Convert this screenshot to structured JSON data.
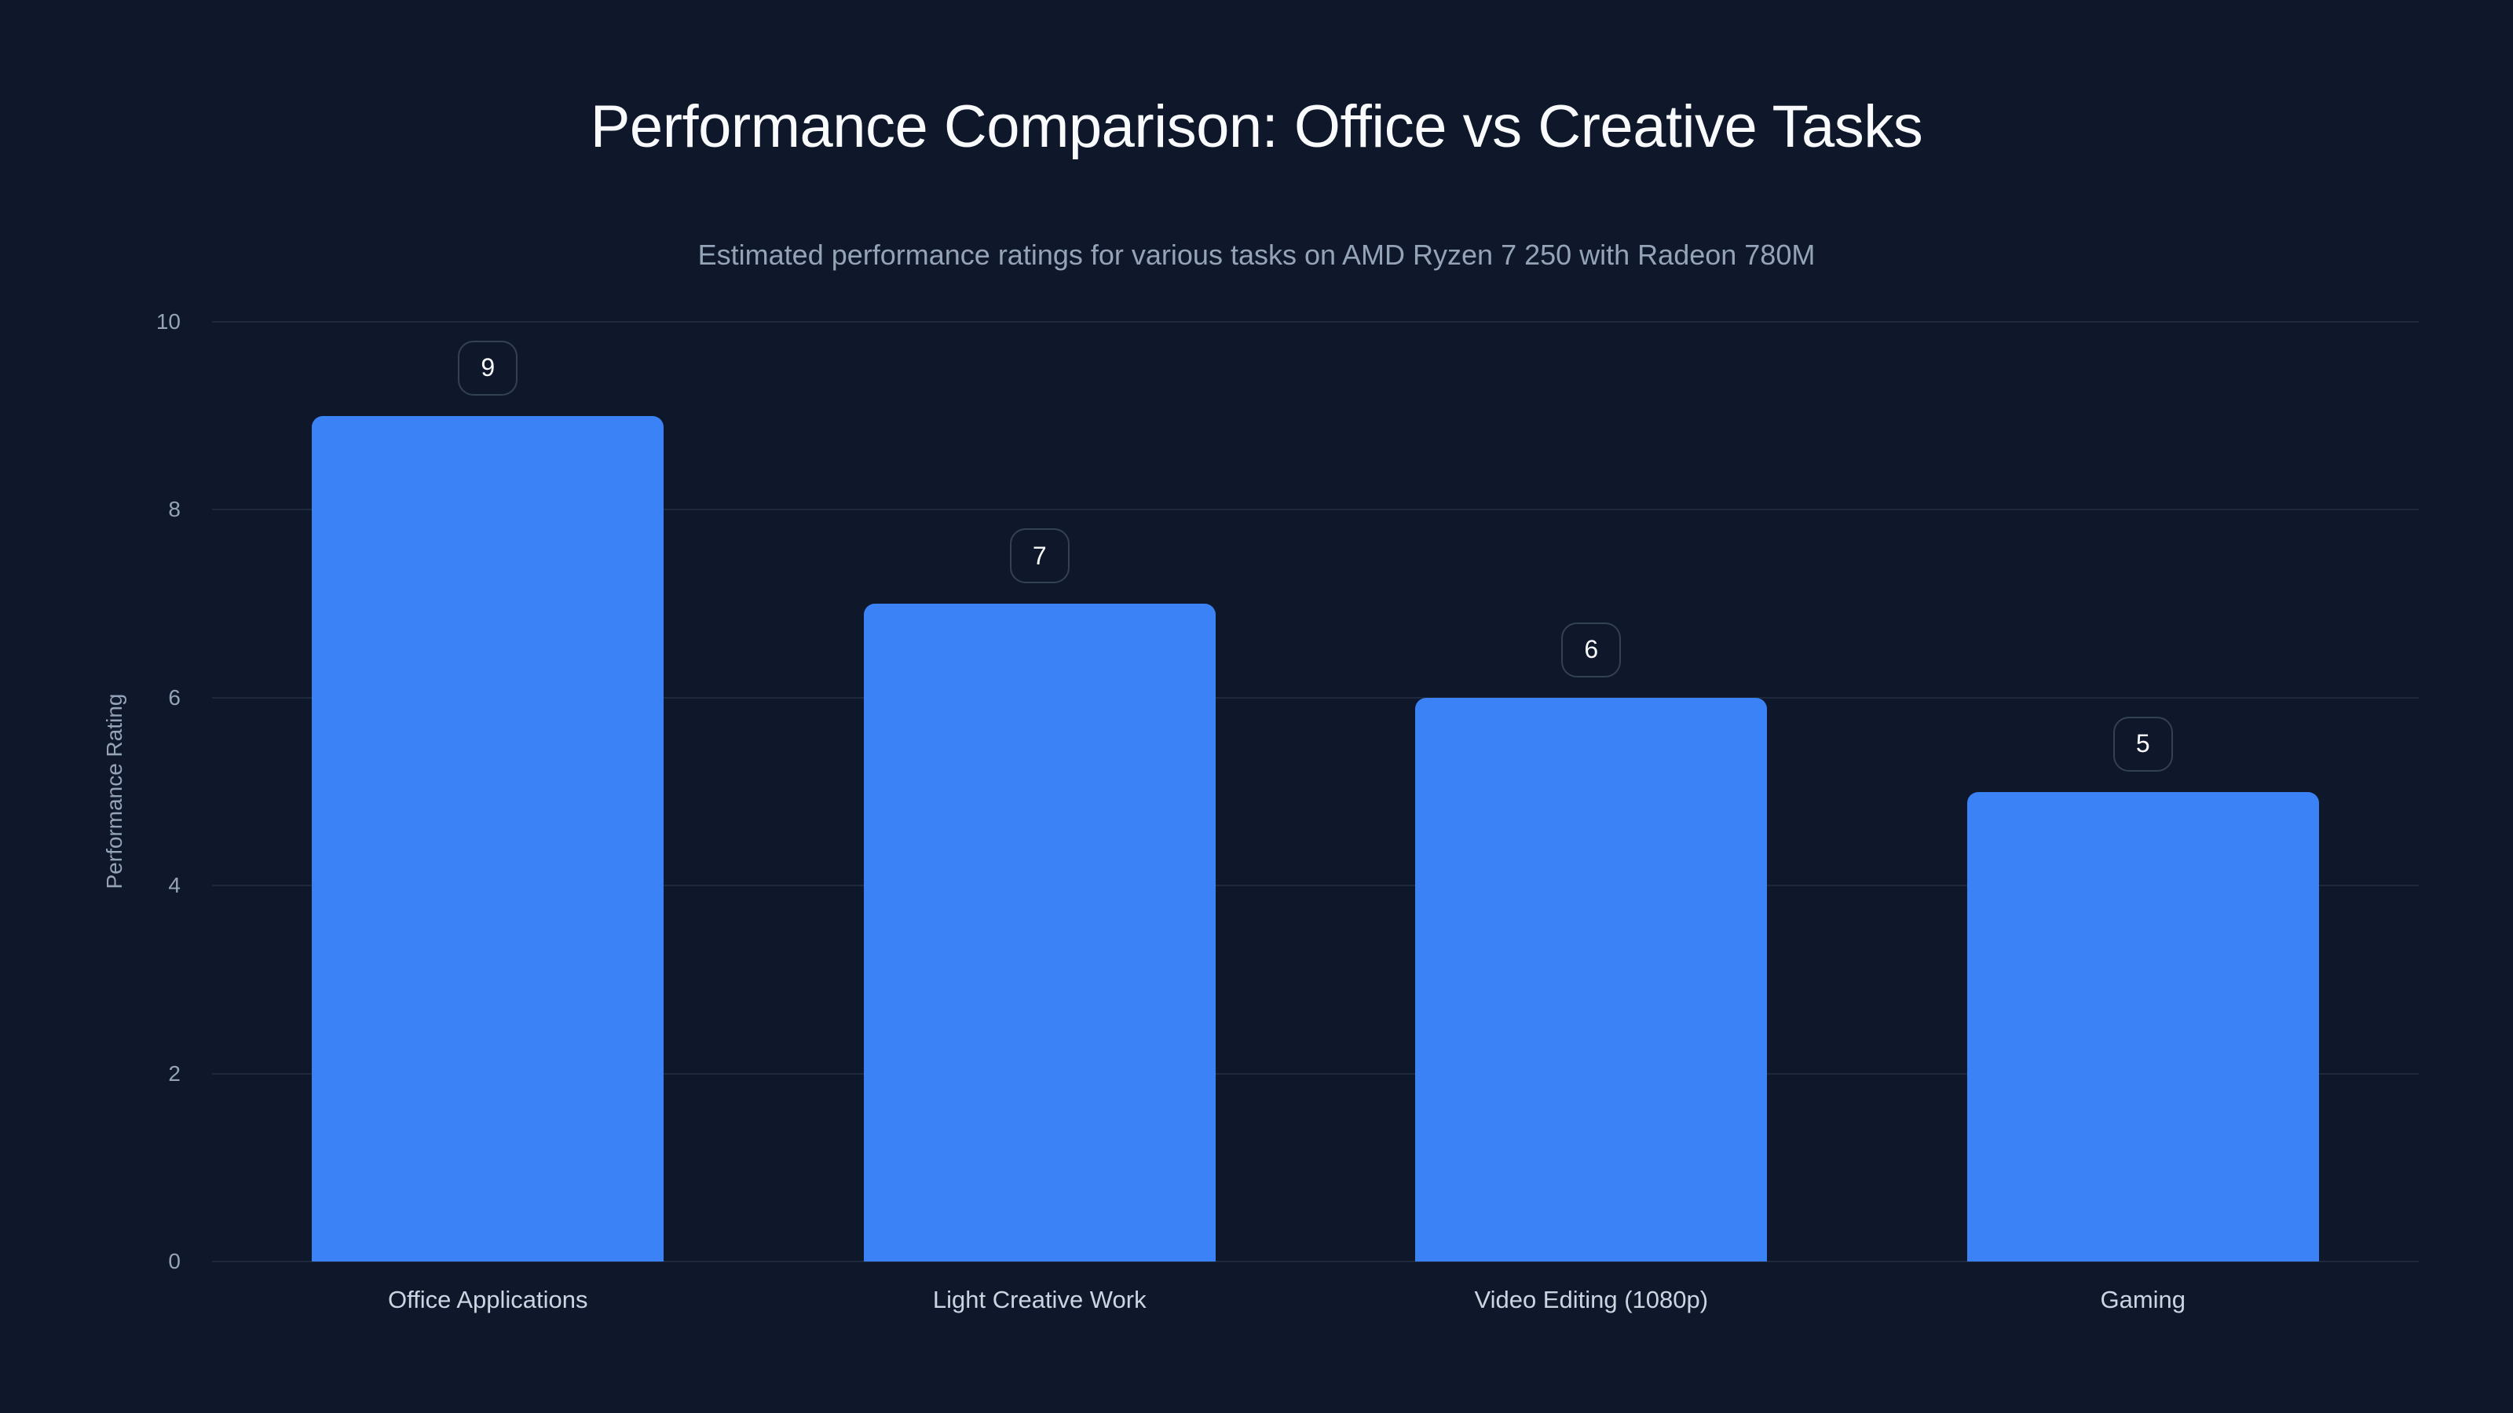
{
  "chart_data": {
    "type": "bar",
    "title": "Performance Comparison: Office vs Creative Tasks",
    "subtitle": "Estimated performance ratings for various tasks on AMD Ryzen 7 250 with Radeon 780M",
    "xlabel": "",
    "ylabel": "Performance Rating",
    "categories": [
      "Office Applications",
      "Light Creative Work",
      "Video Editing (1080p)",
      "Gaming"
    ],
    "values": [
      9,
      7,
      6,
      5
    ],
    "data_labels": [
      "9",
      "7",
      "6",
      "5"
    ],
    "ylim": [
      0,
      10
    ],
    "yticks": [
      "0",
      "2",
      "4",
      "6",
      "8",
      "10"
    ],
    "grid": true,
    "legend": null,
    "colors": {
      "bar": "#3b82f6",
      "background": "#0f172a",
      "grid": "#1e293b",
      "badge_border": "#334155"
    }
  }
}
